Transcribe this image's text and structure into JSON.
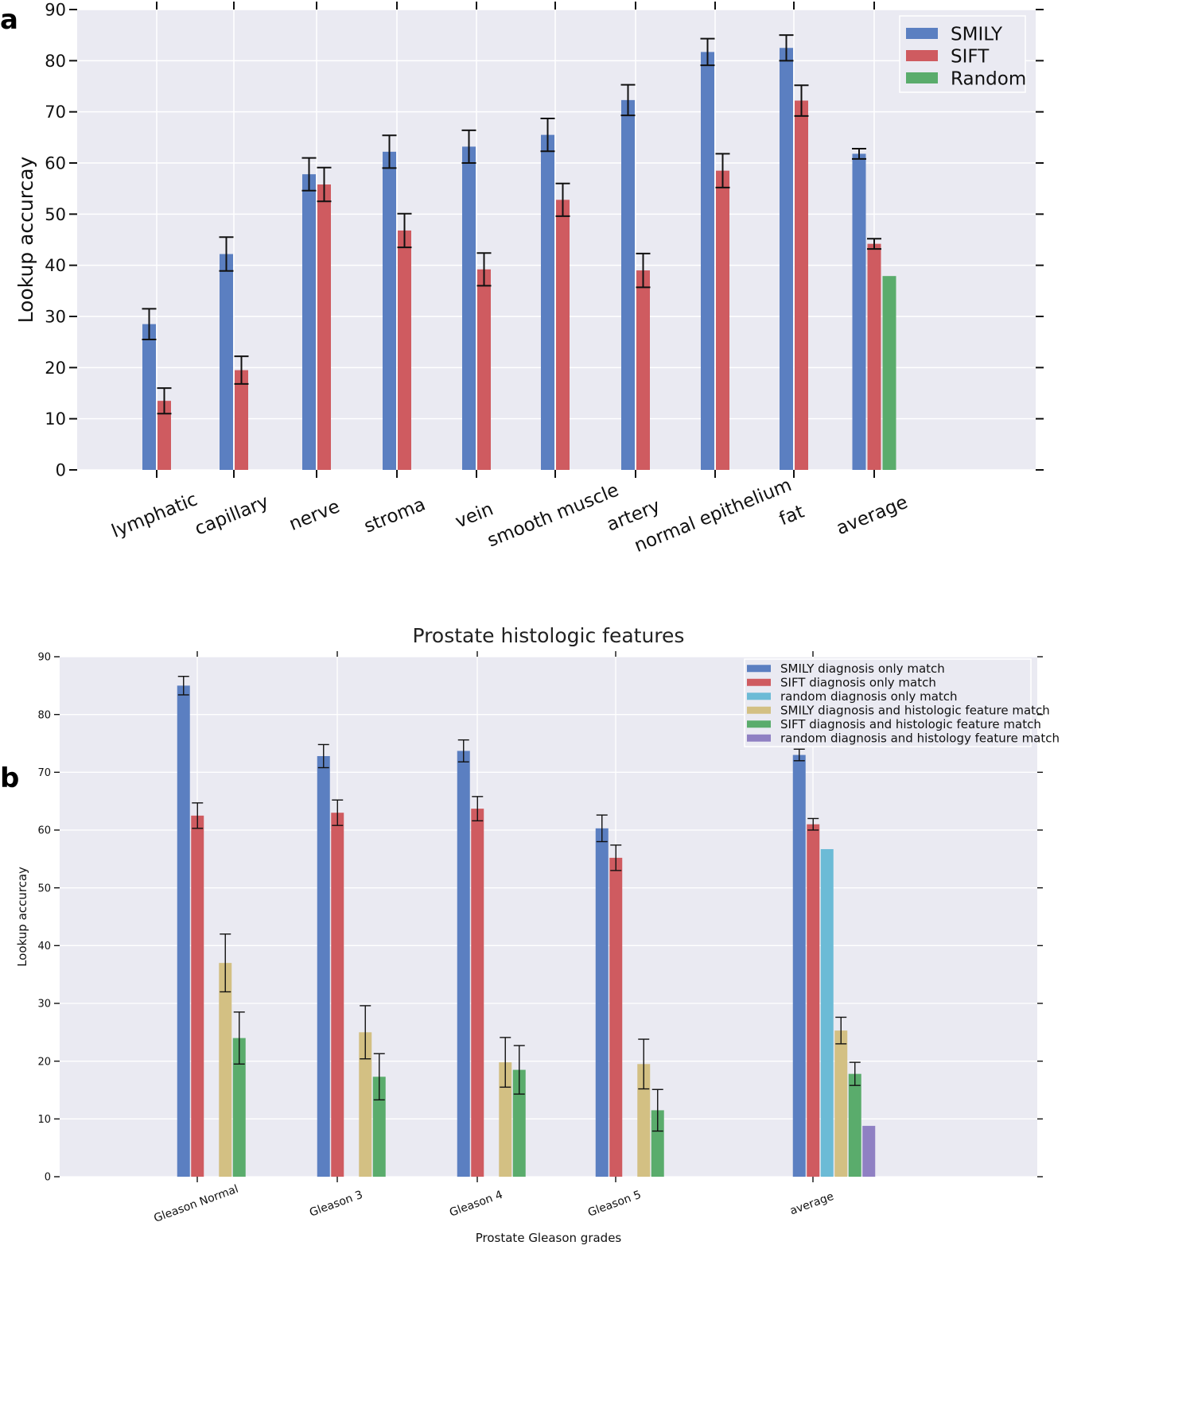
{
  "panels": {
    "a": {
      "letter": "a"
    },
    "b": {
      "letter": "b"
    }
  },
  "chart_data": [
    {
      "type": "bar",
      "title": "",
      "xlabel": "",
      "ylabel": "Lookup accurcay",
      "ylim": [
        0,
        90
      ],
      "yticks": [
        0,
        10,
        20,
        30,
        40,
        50,
        60,
        70,
        80,
        90
      ],
      "grid": true,
      "legend_position": "top-right",
      "categories": [
        "lymphatic",
        "capillary",
        "nerve",
        "stroma",
        "vein",
        "smooth muscle",
        "artery",
        "normal epithelium",
        "fat",
        "average"
      ],
      "series": [
        {
          "name": "SMILY",
          "color": "#5b7fc1",
          "values": [
            28.5,
            42.2,
            57.8,
            62.2,
            63.2,
            65.5,
            72.3,
            81.7,
            82.5,
            61.8
          ],
          "errors": [
            3.0,
            3.3,
            3.2,
            3.2,
            3.2,
            3.2,
            3.0,
            2.6,
            2.5,
            1.0
          ]
        },
        {
          "name": "SIFT",
          "color": "#cf5b60",
          "values": [
            13.5,
            19.5,
            55.8,
            46.8,
            39.2,
            52.8,
            39.0,
            58.5,
            72.2,
            44.2
          ],
          "errors": [
            2.5,
            2.7,
            3.3,
            3.3,
            3.2,
            3.2,
            3.3,
            3.3,
            3.0,
            1.0
          ]
        },
        {
          "name": "Random",
          "color": "#5aac6c",
          "values": [
            null,
            null,
            null,
            null,
            null,
            null,
            null,
            null,
            null,
            37.9
          ],
          "errors": [
            null,
            null,
            null,
            null,
            null,
            null,
            null,
            null,
            null,
            0
          ]
        }
      ]
    },
    {
      "type": "bar",
      "title": "Prostate histologic features",
      "xlabel": "Prostate Gleason grades",
      "ylabel": "Lookup accurcay",
      "ylim": [
        0,
        90
      ],
      "yticks": [
        0,
        10,
        20,
        30,
        40,
        50,
        60,
        70,
        80,
        90
      ],
      "grid": true,
      "legend_position": "top-right",
      "categories": [
        "Gleason Normal",
        "Gleason 3",
        "Gleason 4",
        "Gleason 5",
        "average"
      ],
      "series": [
        {
          "name": "SMILY diagnosis only match",
          "color": "#5b7fc1",
          "values": [
            85.0,
            72.8,
            73.7,
            60.3,
            73.0
          ],
          "errors": [
            1.6,
            2.0,
            1.9,
            2.3,
            1.0
          ]
        },
        {
          "name": "SIFT diagnosis only match",
          "color": "#cf5b60",
          "values": [
            62.5,
            63.0,
            63.7,
            55.2,
            61.0
          ],
          "errors": [
            2.2,
            2.2,
            2.1,
            2.2,
            1.0
          ]
        },
        {
          "name": "random diagnosis only match",
          "color": "#6cbbd6",
          "values": [
            null,
            null,
            null,
            null,
            56.7
          ],
          "errors": [
            null,
            null,
            null,
            null,
            0
          ]
        },
        {
          "name": "SMILY diagnosis and histologic feature match",
          "color": "#d3c083",
          "values": [
            37.0,
            25.0,
            19.8,
            19.5,
            25.3
          ],
          "errors": [
            5.0,
            4.6,
            4.3,
            4.3,
            2.3
          ]
        },
        {
          "name": "SIFT diagnosis and histologic feature match",
          "color": "#5aac6c",
          "values": [
            24.0,
            17.3,
            18.5,
            11.5,
            17.8
          ],
          "errors": [
            4.5,
            4.0,
            4.2,
            3.6,
            2.0
          ]
        },
        {
          "name": "random diagnosis and histology feature match",
          "color": "#8f80c3",
          "values": [
            null,
            null,
            null,
            null,
            8.8
          ],
          "errors": [
            null,
            null,
            null,
            null,
            0
          ]
        }
      ]
    }
  ]
}
